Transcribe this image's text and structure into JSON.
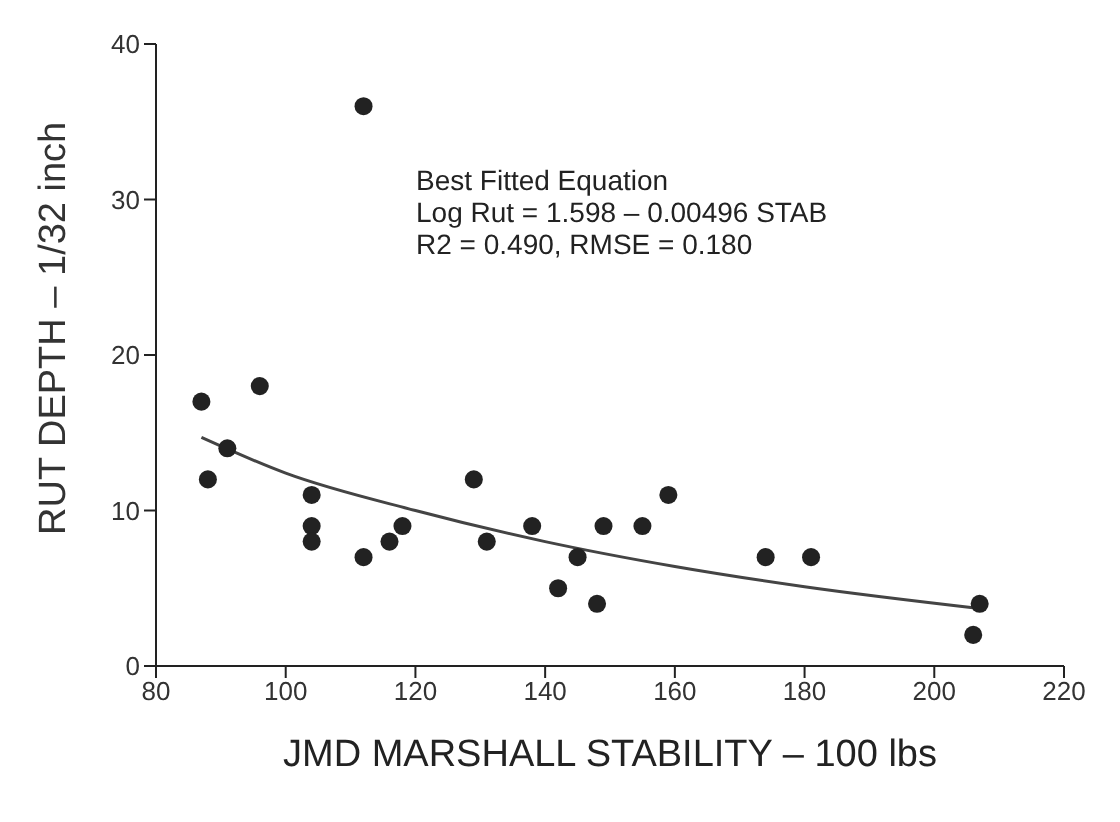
{
  "chart_data": {
    "type": "scatter",
    "xlabel": "JMD MARSHALL STABILITY – 100 lbs",
    "ylabel": "RUT DEPTH – 1/32 inch",
    "annotations": [
      "Best Fitted Equation",
      "Log Rut = 1.598 – 0.00496 STAB",
      "R2 = 0.490, RMSE = 0.180"
    ],
    "xlim": [
      80,
      220
    ],
    "xticks": [
      80,
      100,
      120,
      140,
      160,
      180,
      200,
      220
    ],
    "ylim": [
      0,
      40
    ],
    "yticks": [
      0,
      10,
      20,
      30,
      40
    ],
    "grid": false,
    "series": [
      {
        "marker": "circle",
        "color": "#222222",
        "x": [
          87,
          88,
          91,
          96,
          104,
          104,
          104,
          112,
          112,
          116,
          118,
          129,
          131,
          138,
          142,
          145,
          148,
          149,
          155,
          159,
          174,
          181,
          206,
          207
        ],
        "values": [
          17,
          12,
          14,
          18,
          11,
          9,
          8,
          36,
          7,
          8,
          9,
          12,
          8,
          9,
          5,
          7,
          4,
          9,
          9,
          11,
          7,
          7,
          2,
          4
        ]
      },
      {
        "type": "line",
        "marker": "none",
        "color": "#444444",
        "line_style": "solid",
        "x": [
          87,
          100,
          120,
          140,
          160,
          180,
          207
        ],
        "values": [
          14.7,
          12.4,
          10.0,
          8.0,
          6.4,
          5.1,
          3.7
        ]
      }
    ]
  }
}
